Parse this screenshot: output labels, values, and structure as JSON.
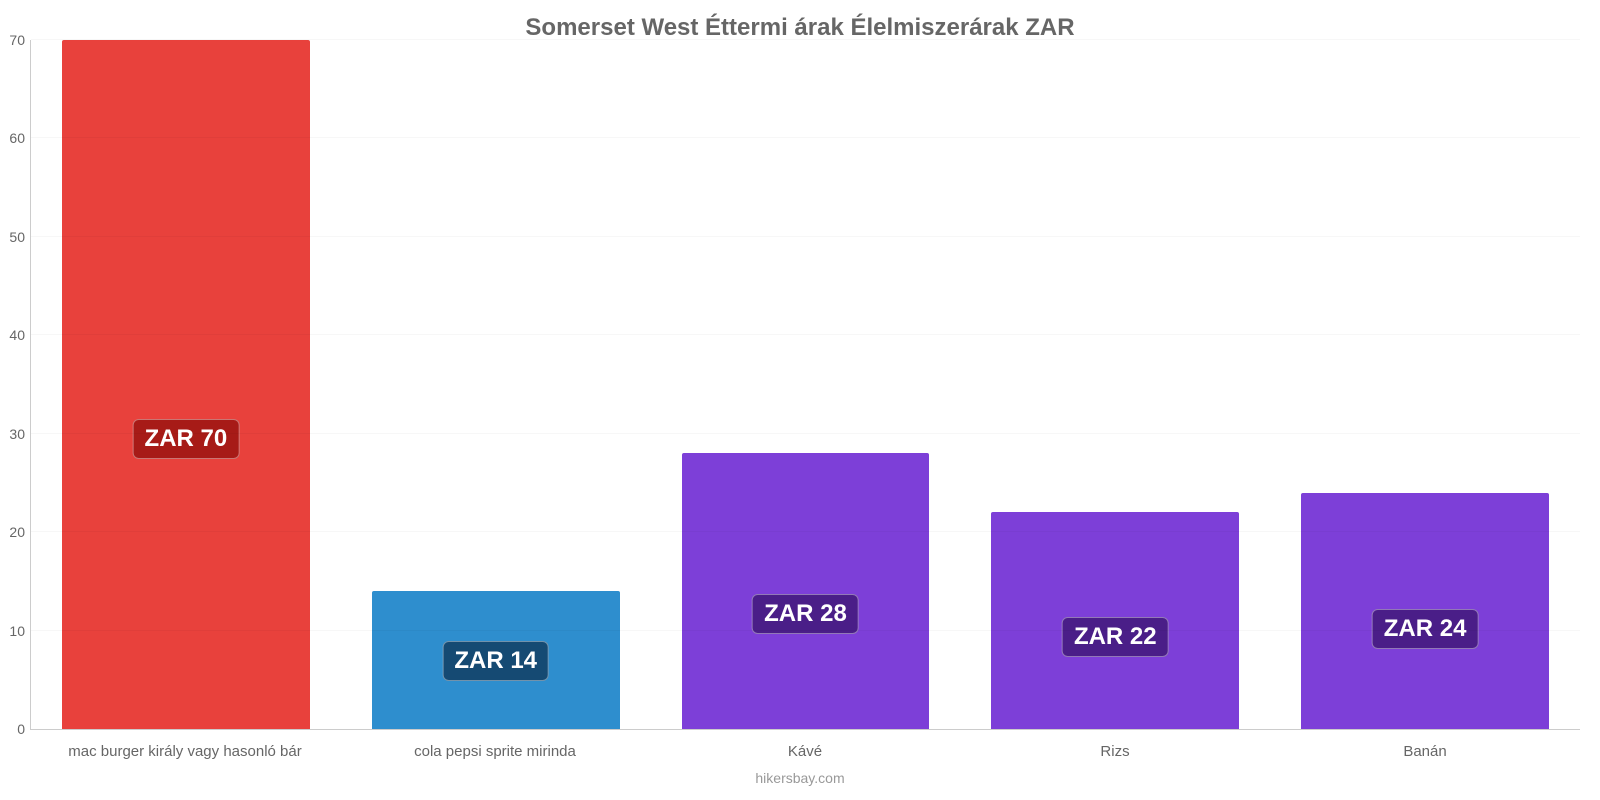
{
  "chart": {
    "type": "bar",
    "title": "Somerset West Éttermi árak Élelmiszerárak ZAR",
    "title_fontsize": 24,
    "title_color": "#666666",
    "background_color": "#ffffff",
    "grid_color": "rgba(0,0,0,0.03)",
    "axis_line_color": "#cccccc",
    "tick_label_color": "#666666",
    "tick_label_fontsize": 14,
    "xlabel_fontsize": 15,
    "ylim": [
      0,
      70
    ],
    "yticks": [
      0,
      10,
      20,
      30,
      40,
      50,
      60,
      70
    ],
    "bar_width": 0.8,
    "data_label_fontsize": 24,
    "data_label_text_color": "#ffffff",
    "categories": [
      "mac burger király vagy hasonló bár",
      "cola pepsi sprite mirinda",
      "Kávé",
      "Rizs",
      "Banán"
    ],
    "values": [
      70,
      14,
      28,
      22,
      24
    ],
    "bar_colors": [
      "#e8413c",
      "#2e8ece",
      "#7d3fd8",
      "#7d3fd8",
      "#7d3fd8"
    ],
    "data_label_prefix": "ZAR ",
    "data_label_bg_colors": [
      "#a71b17",
      "#154a73",
      "#4a1e88",
      "#4a1e88",
      "#4a1e88"
    ],
    "data_label_y_offset": [
      270,
      48,
      95,
      72,
      80
    ]
  },
  "source": "hikersbay.com"
}
